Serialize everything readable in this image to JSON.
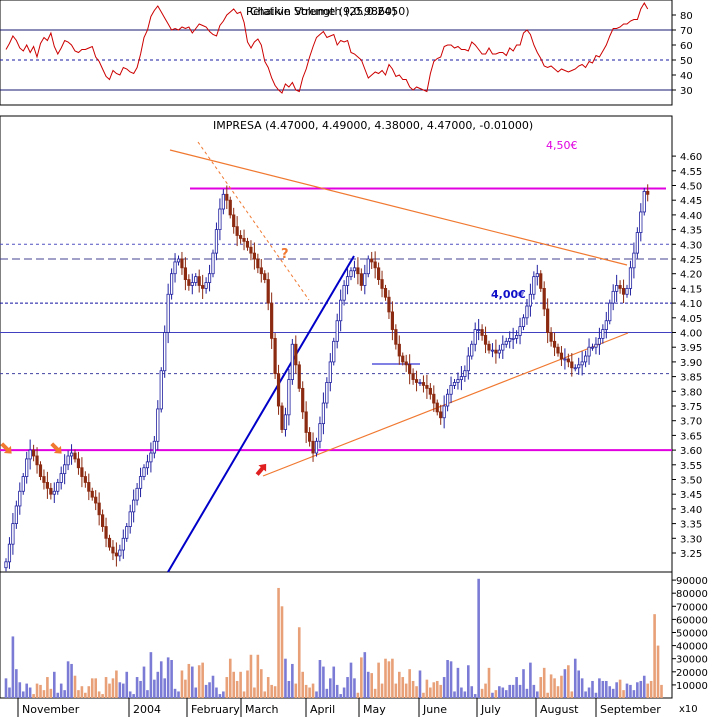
{
  "chart_data": [
    {
      "panel": "indicator",
      "type": "line",
      "title_overlay": [
        "Relative Strength (25,0.2450)",
        "Chaikin Volume (9,0.9860)"
      ],
      "ylim": [
        20,
        90
      ],
      "yticks": [
        "80",
        "70",
        "60",
        "50",
        "40",
        "30"
      ],
      "ref_levels": [
        70,
        50,
        30
      ],
      "series": [
        {
          "color": "#cc0000",
          "values": [
            57,
            61,
            66,
            63,
            58,
            56,
            60,
            55,
            59,
            52,
            61,
            65,
            63,
            68,
            59,
            54,
            58,
            63,
            62,
            60,
            56,
            55,
            57,
            57,
            58,
            59,
            52,
            49,
            44,
            39,
            37,
            43,
            41,
            40,
            45,
            44,
            42,
            41,
            45,
            54,
            65,
            70,
            79,
            83,
            86,
            82,
            78,
            74,
            70,
            71,
            70,
            72,
            71,
            72,
            68,
            71,
            74,
            73,
            72,
            69,
            67,
            66,
            73,
            76,
            80,
            82,
            84,
            81,
            82,
            75,
            62,
            58,
            62,
            64,
            60,
            49,
            45,
            38,
            33,
            30,
            28,
            34,
            32,
            35,
            30,
            29,
            38,
            44,
            52,
            59,
            65,
            67,
            69,
            65,
            66,
            67,
            60,
            63,
            62,
            63,
            55,
            54,
            52,
            50,
            44,
            38,
            40,
            42,
            41,
            43,
            40,
            47,
            44,
            39,
            40,
            37,
            37,
            32,
            30,
            32,
            31,
            30,
            29,
            41,
            49,
            51,
            52,
            59,
            60,
            60,
            58,
            59,
            57,
            57,
            56,
            62,
            60,
            57,
            54,
            54,
            58,
            54,
            54,
            55,
            55,
            53,
            58,
            56,
            60,
            60,
            68,
            70,
            67,
            60,
            55,
            51,
            46,
            45,
            46,
            44,
            42,
            44,
            43,
            42,
            43,
            44,
            46,
            47,
            45,
            49,
            48,
            53,
            52,
            56,
            60,
            66,
            71,
            71,
            72,
            74,
            74,
            76,
            77,
            77,
            84,
            88,
            84
          ]
        }
      ]
    },
    {
      "panel": "price",
      "type": "candlestick",
      "title": "IMPRESA (4.47000, 4.49000, 4.38000, 4.47000, -0.01000)",
      "ylim": [
        3.2,
        4.65
      ],
      "yticks": [
        "4.60",
        "4.55",
        "4.50",
        "4.45",
        "4.40",
        "4.35",
        "4.30",
        "4.25",
        "4.20",
        "4.15",
        "4.10",
        "4.05",
        "4.00",
        "3.95",
        "3.90",
        "3.85",
        "3.80",
        "3.75",
        "3.70",
        "3.65",
        "3.60",
        "3.55",
        "3.50",
        "3.45",
        "3.40",
        "3.35",
        "3.30",
        "3.25"
      ],
      "x_labels": [
        "November",
        "2004",
        "February",
        "March",
        "April",
        "May",
        "June",
        "July",
        "August",
        "September"
      ],
      "annotations": [
        "4,50€",
        "4,00€",
        "?"
      ],
      "close": [
        3.22,
        3.28,
        3.35,
        3.41,
        3.46,
        3.51,
        3.57,
        3.6,
        3.58,
        3.55,
        3.51,
        3.49,
        3.47,
        3.45,
        3.46,
        3.49,
        3.52,
        3.55,
        3.58,
        3.59,
        3.57,
        3.54,
        3.51,
        3.49,
        3.46,
        3.44,
        3.42,
        3.38,
        3.34,
        3.3,
        3.27,
        3.25,
        3.24,
        3.26,
        3.3,
        3.34,
        3.39,
        3.43,
        3.47,
        3.51,
        3.54,
        3.56,
        3.59,
        3.63,
        3.74,
        3.87,
        4,
        4.13,
        4.2,
        4.24,
        4.25,
        4.22,
        4.18,
        4.16,
        4.17,
        4.19,
        4.16,
        4.15,
        4.17,
        4.2,
        4.27,
        4.35,
        4.42,
        4.47,
        4.45,
        4.4,
        4.36,
        4.33,
        4.32,
        4.31,
        4.29,
        4.27,
        4.25,
        4.22,
        4.2,
        4.18,
        4.1,
        3.98,
        3.86,
        3.75,
        3.67,
        3.72,
        3.84,
        3.96,
        3.89,
        3.81,
        3.73,
        3.66,
        3.63,
        3.59,
        3.63,
        3.69,
        3.76,
        3.83,
        3.9,
        3.97,
        4.04,
        4.11,
        4.16,
        4.19,
        4.21,
        4.22,
        4.2,
        4.16,
        4.2,
        4.25,
        4.24,
        4.22,
        4.18,
        4.15,
        4.12,
        4.07,
        4.01,
        3.96,
        3.92,
        3.9,
        3.89,
        3.86,
        3.84,
        3.83,
        3.83,
        3.82,
        3.81,
        3.79,
        3.76,
        3.73,
        3.71,
        3.75,
        3.79,
        3.82,
        3.83,
        3.84,
        3.85,
        3.87,
        3.92,
        3.96,
        4.01,
        4.01,
        3.99,
        3.96,
        3.94,
        3.94,
        3.93,
        3.94,
        3.96,
        3.97,
        3.98,
        3.98,
        3.99,
        4.02,
        4.05,
        4.09,
        4.13,
        4.19,
        4.2,
        4.15,
        4.08,
        4,
        3.97,
        3.95,
        3.93,
        3.91,
        3.91,
        3.9,
        3.88,
        3.88,
        3.89,
        3.9,
        3.92,
        3.95,
        3.95,
        3.96,
        3.98,
        4.01,
        4.04,
        4.1,
        4.14,
        4.16,
        4.15,
        4.13,
        4.15,
        4.22,
        4.27,
        4.34,
        4.41,
        4.48,
        4.47
      ]
    },
    {
      "panel": "volume",
      "type": "bar",
      "ylim": [
        0,
        95000
      ],
      "yticks": [
        "90000",
        "80000",
        "70000",
        "60000",
        "50000",
        "40000",
        "30000",
        "20000",
        "10000"
      ],
      "unit_label": "x10",
      "values": [
        15000,
        8000,
        47000,
        22000,
        12000,
        5000,
        11000,
        8000,
        3000,
        11000,
        10000,
        6000,
        16000,
        7000,
        20000,
        4000,
        11000,
        6000,
        28000,
        26000,
        17000,
        6000,
        9000,
        4000,
        9000,
        15000,
        15000,
        5000,
        3000,
        16000,
        11000,
        15000,
        21000,
        12000,
        11000,
        20000,
        5000,
        3000,
        16000,
        13000,
        24000,
        6000,
        35000,
        14000,
        20000,
        28000,
        15000,
        31000,
        29000,
        7000,
        5000,
        21000,
        14000,
        26000,
        24000,
        8000,
        25000,
        27000,
        10000,
        12000,
        17000,
        8000,
        3000,
        5000,
        16000,
        30000,
        20000,
        13000,
        20000,
        5000,
        21000,
        33000,
        8000,
        33000,
        22000,
        5000,
        16000,
        10000,
        9000,
        84000,
        70000,
        30000,
        13000,
        26000,
        11000,
        54000,
        20000,
        10000,
        8000,
        11000,
        5000,
        29000,
        24000,
        7000,
        15000,
        24000,
        10000,
        3000,
        8000,
        16000,
        27000,
        15000,
        4000,
        31000,
        35000,
        20000,
        19000,
        7000,
        27000,
        11000,
        30000,
        28000,
        30000,
        11000,
        20000,
        16000,
        11000,
        22000,
        13000,
        9000,
        21000,
        4000,
        14000,
        8000,
        12000,
        13000,
        10000,
        16000,
        29000,
        28000,
        5000,
        23000,
        8000,
        5000,
        25000,
        9000,
        3000,
        91000,
        7000,
        11000,
        23000,
        4000,
        6000,
        9000,
        8000,
        6000,
        10000,
        10000,
        16000,
        10000,
        22000,
        7000,
        27000,
        10000,
        5000,
        16000,
        23000,
        4000,
        18000,
        15000,
        9000,
        17000,
        22000,
        25000,
        5000,
        30000,
        21000,
        15000,
        5000,
        8000,
        13000,
        4000,
        15000,
        13000,
        13000,
        9000,
        7000,
        12000,
        14000,
        6000,
        11000,
        10000,
        6000,
        12000,
        13000,
        17000,
        11000,
        13000,
        64000,
        40000,
        10000
      ]
    }
  ]
}
